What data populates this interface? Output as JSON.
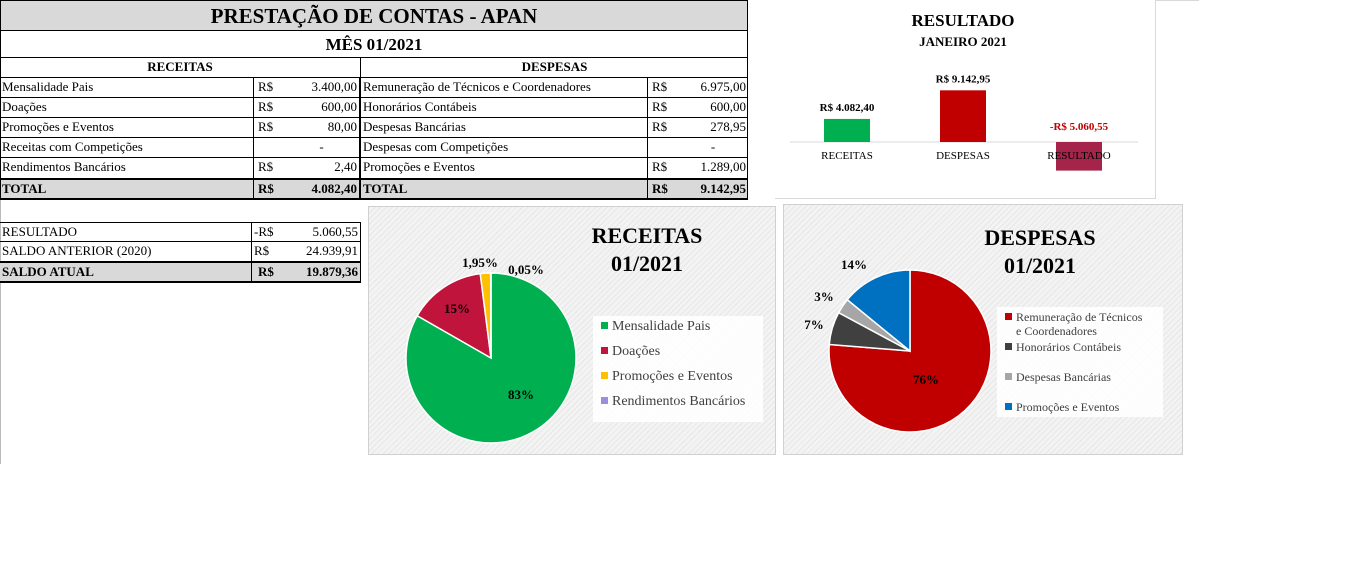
{
  "header": {
    "title": "PRESTAÇÃO DE CONTAS - APAN",
    "month": "MÊS 01/2021"
  },
  "receitas": {
    "heading": "RECEITAS",
    "rows": [
      {
        "label": "Mensalidade Pais",
        "cur": "R$",
        "value": "3.400,00"
      },
      {
        "label": "Doações",
        "cur": "R$",
        "value": "600,00"
      },
      {
        "label": "Promoções e Eventos",
        "cur": "R$",
        "value": "80,00"
      },
      {
        "label": "Receitas com Competições",
        "cur": "",
        "value": "-"
      },
      {
        "label": "Rendimentos Bancários",
        "cur": "R$",
        "value": "2,40"
      }
    ],
    "total": {
      "label": "TOTAL",
      "cur": "R$",
      "value": "4.082,40"
    }
  },
  "despesas": {
    "heading": "DESPESAS",
    "rows": [
      {
        "label": "Remuneração de Técnicos e Coordenadores",
        "cur": "R$",
        "value": "6.975,00"
      },
      {
        "label": "Honorários Contábeis",
        "cur": "R$",
        "value": "600,00"
      },
      {
        "label": "Despesas Bancárias",
        "cur": "R$",
        "value": "278,95"
      },
      {
        "label": "Despesas com Competições",
        "cur": "",
        "value": "-"
      },
      {
        "label": "Promoções e Eventos",
        "cur": "R$",
        "value": "1.289,00"
      }
    ],
    "total": {
      "label": "TOTAL",
      "cur": "R$",
      "value": "9.142,95"
    }
  },
  "saldo": {
    "rows": [
      {
        "label": "RESULTADO",
        "cur": "-R$",
        "value": "5.060,55"
      },
      {
        "label": "SALDO ANTERIOR (2020)",
        "cur": "R$",
        "value": "24.939,91"
      }
    ],
    "atual": {
      "label": "SALDO ATUAL",
      "cur": "R$",
      "value": "19.879,36"
    }
  },
  "colors": {
    "green": "#00b050",
    "red": "#c00000",
    "maroon": "#a52449",
    "crimson": "#c0143c",
    "yellow": "#ffc000",
    "purple": "#9b8fdc",
    "dark": "#404040",
    "gray": "#a6a6a6",
    "blue": "#0070c0"
  },
  "chart_data": [
    {
      "type": "bar",
      "title": "RESULTADO",
      "subtitle": "JANEIRO 2021",
      "categories": [
        "RECEITAS",
        "DESPESAS",
        "RESULTADO"
      ],
      "values": [
        4082.4,
        9142.95,
        -5060.55
      ],
      "data_labels": [
        "R$ 4.082,40",
        "R$ 9.142,95",
        "-R$ 5.060,55"
      ],
      "colors": [
        "#00b050",
        "#c00000",
        "#a52449"
      ],
      "ylim": [
        -5100,
        9200
      ]
    },
    {
      "type": "pie",
      "title": "RECEITAS",
      "subtitle": "01/2021",
      "labels": [
        "Mensalidade Pais",
        "Doações",
        "Promoções e Eventos",
        "Rendimentos Bancários"
      ],
      "values": [
        3400.0,
        600.0,
        80.0,
        2.4
      ],
      "percent_labels": [
        "83%",
        "15%",
        "1,95%",
        "0,05%"
      ],
      "colors": [
        "#00b050",
        "#c0143c",
        "#ffc000",
        "#9b8fdc"
      ],
      "legend": "right"
    },
    {
      "type": "pie",
      "title": "DESPESAS",
      "subtitle": "01/2021",
      "labels": [
        "Remuneração de Técnicos e Coordenadores",
        "Honorários Contábeis",
        "Despesas Bancárias",
        "Promoções e Eventos"
      ],
      "values": [
        6975.0,
        600.0,
        278.95,
        1289.0
      ],
      "percent_labels": [
        "76%",
        "7%",
        "3%",
        "14%"
      ],
      "colors": [
        "#c00000",
        "#404040",
        "#a6a6a6",
        "#0070c0"
      ],
      "legend": "right"
    }
  ]
}
